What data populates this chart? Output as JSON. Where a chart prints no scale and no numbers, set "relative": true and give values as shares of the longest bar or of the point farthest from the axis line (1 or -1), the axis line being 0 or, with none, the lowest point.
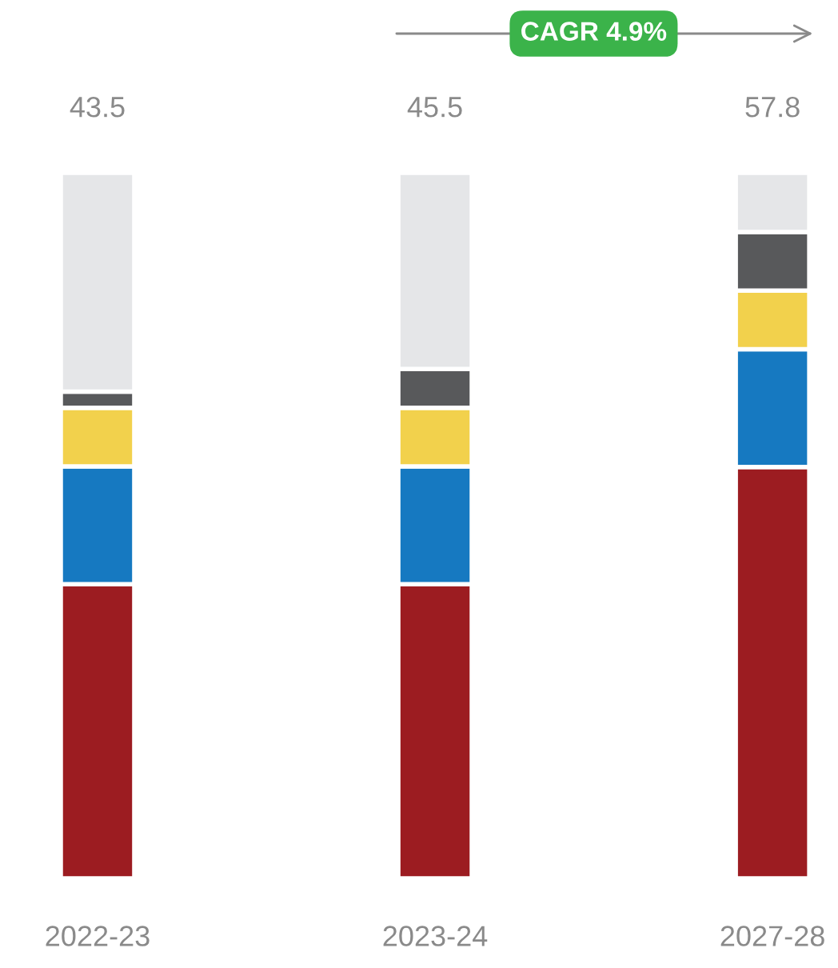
{
  "chart_data": {
    "type": "bar",
    "stacked": true,
    "relative": true,
    "categories": [
      "2022-23",
      "2023-24",
      "2027-28"
    ],
    "series": [
      {
        "color": "#9c1c21",
        "values": [
          0.417,
          0.417,
          0.583
        ]
      },
      {
        "color": "#1679c1",
        "values": [
          0.167,
          0.167,
          0.167
        ]
      },
      {
        "color": "#f2d14c",
        "values": [
          0.083,
          0.083,
          0.083
        ]
      },
      {
        "color": "#58595b",
        "values": [
          0.023,
          0.055,
          0.083
        ]
      },
      {
        "color": "#e5e6e8",
        "values": [
          0.31,
          0.278,
          0.084
        ]
      }
    ],
    "annotations": [
      "43.5",
      "45.5",
      "57.8",
      "CAGR 4.9%"
    ]
  }
}
